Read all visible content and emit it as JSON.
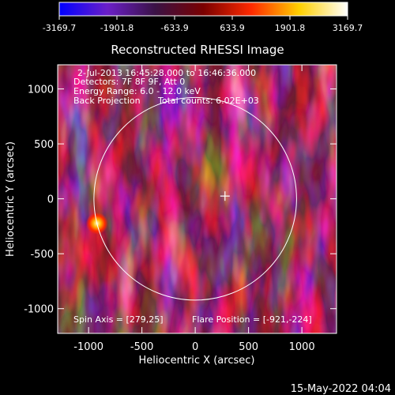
{
  "colorbar": {
    "ticks": [
      "-3169.7",
      "-1901.8",
      "-633.9",
      "633.9",
      "1901.8",
      "3169.7"
    ],
    "tick_values": [
      -3169.7,
      -1901.8,
      -633.9,
      633.9,
      1901.8,
      3169.7
    ],
    "colors": [
      "#0000ff",
      "#6b1fc8",
      "#3a1245",
      "#7a0000",
      "#ff2a00",
      "#ffd000",
      "#ffffff"
    ]
  },
  "plot": {
    "title": "Reconstructed RHESSI Image",
    "info_lines": [
      "2-Jul-2013 16:45:28.000 to 16:46:36.000",
      "Detectors: 7F 8F 9F, Att 0",
      "Energy Range: 6.0 - 12.0 keV"
    ],
    "back_projection_label": "Back Projection",
    "total_counts": "Total counts: 6.02E+03",
    "spin_axis": "Spin Axis = [279,25]",
    "flare_position": "Flare Position = [-921,-224]",
    "xlabel": "Heliocentric X (arcsec)",
    "ylabel": "Heliocentric Y (arcsec)",
    "x_ticks": [
      -1000,
      -500,
      0,
      500,
      1000
    ],
    "y_ticks": [
      1000,
      500,
      0,
      -500,
      -1000
    ],
    "x_tick_labels": [
      "-1000",
      "-500",
      "0",
      "500",
      "1000"
    ],
    "y_tick_labels": [
      "1000",
      "500",
      "0",
      "-500",
      "-1000"
    ],
    "xlim": [
      -1290,
      1325
    ],
    "ylim": [
      -1225,
      1220
    ],
    "solar_disk_center": [
      0,
      0
    ],
    "solar_radius_arcsec": 950,
    "cross_position": [
      279,
      25
    ],
    "blob_position": [
      -921,
      -224
    ]
  },
  "footer": {
    "date_stamp": "15-May-2022 04:04"
  }
}
